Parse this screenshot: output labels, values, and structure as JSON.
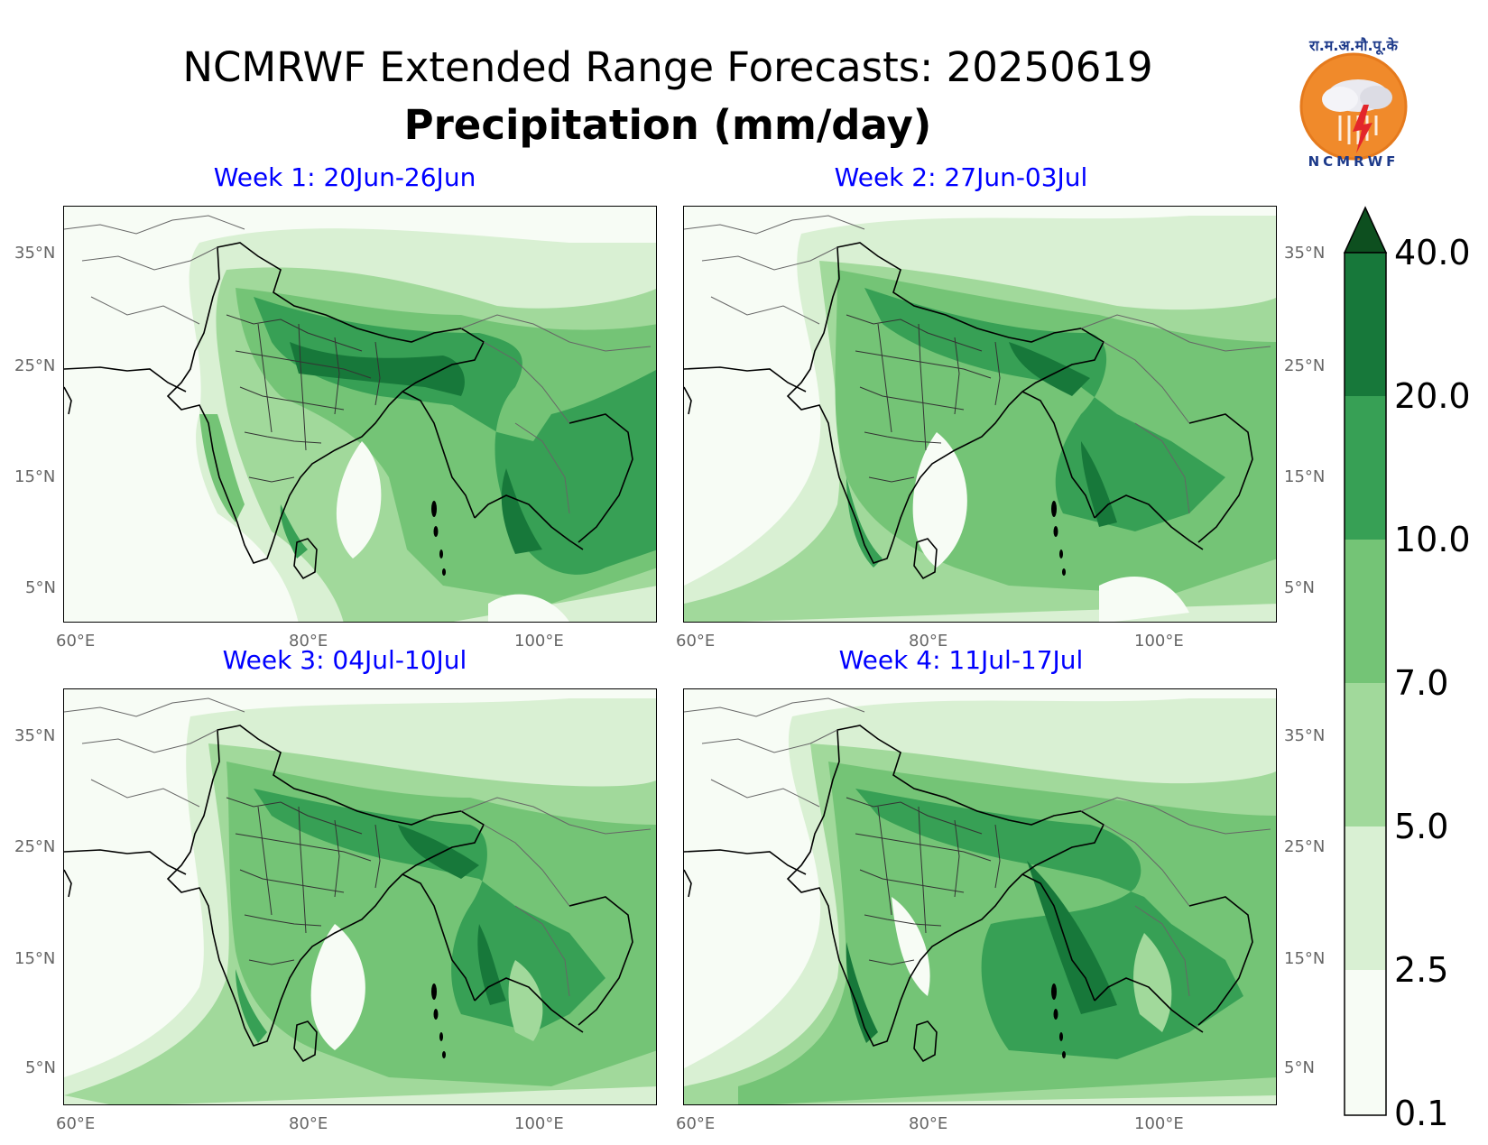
{
  "header": {
    "title": "NCMRWF Extended Range Forecasts: 20250619",
    "subtitle": "Precipitation (mm/day)"
  },
  "logo": {
    "top_text": "रा.म.अ.मौ.पू.के",
    "bottom_text": "NCMRWF"
  },
  "panels": [
    {
      "title": "Week 1: 20Jun-26Jun"
    },
    {
      "title": "Week 2: 27Jun-03Jul"
    },
    {
      "title": "Week 3: 04Jul-10Jul"
    },
    {
      "title": "Week 4: 11Jul-17Jul"
    }
  ],
  "axes": {
    "lat_labels": [
      "35°N",
      "25°N",
      "15°N",
      "5°N"
    ],
    "lon_labels": [
      "60°E",
      "80°E",
      "100°E"
    ]
  },
  "colorbar": {
    "levels": [
      "40.0",
      "20.0",
      "10.0",
      "7.0",
      "5.0",
      "2.5",
      "0.1"
    ],
    "colors": [
      "#0d4f1f",
      "#17783a",
      "#37a055",
      "#74c476",
      "#a1d99b",
      "#d9f0d3",
      "#f7fcf5"
    ],
    "extend": "max"
  }
}
